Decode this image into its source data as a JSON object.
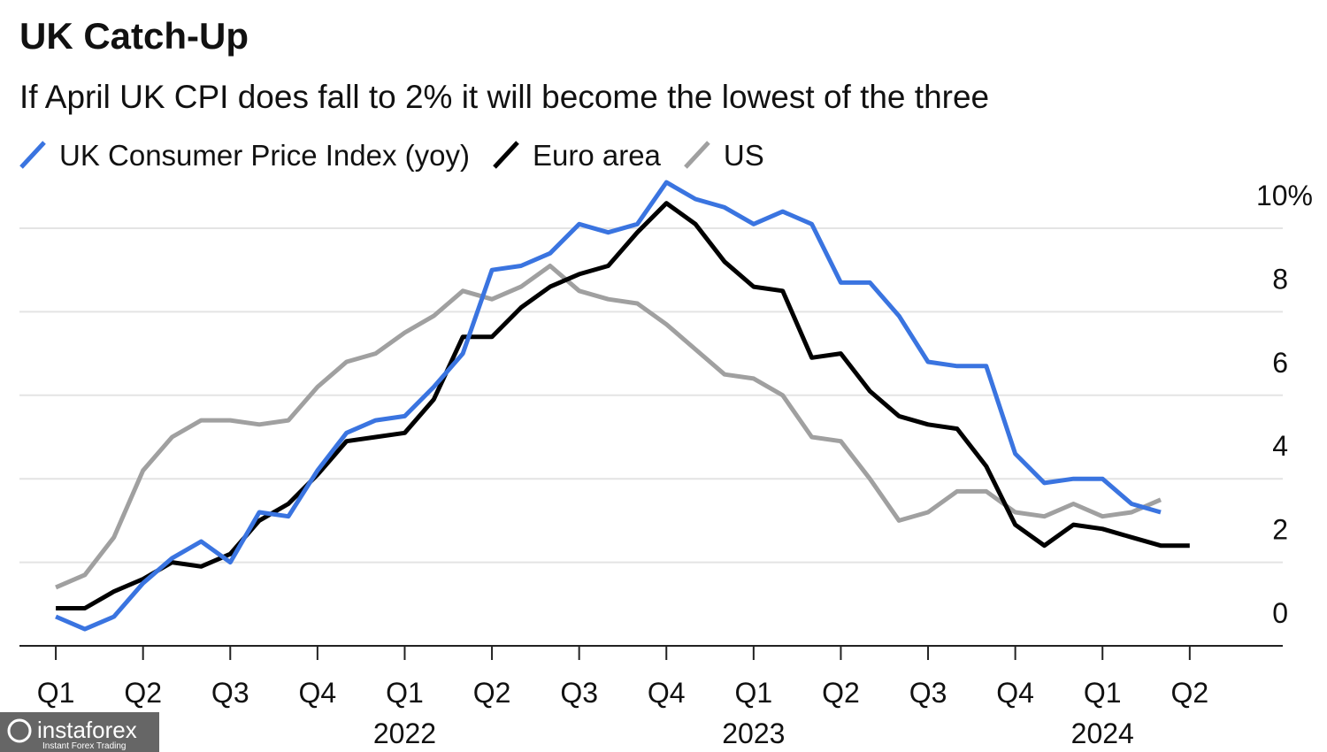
{
  "chart_data": {
    "type": "line",
    "title": "UK Catch-Up",
    "subtitle": "If April UK CPI does fall to 2% it will become the lowest of the three",
    "x": [
      0,
      1,
      2,
      3,
      4,
      5,
      6,
      7,
      8,
      9,
      10,
      11,
      12,
      13,
      14,
      15,
      16,
      17,
      18,
      19,
      20,
      21,
      22,
      23,
      24,
      25,
      26,
      27,
      28,
      29,
      30,
      31,
      32,
      33,
      34,
      35,
      36,
      37,
      38,
      39
    ],
    "series": [
      {
        "name": "UK Consumer Price Index (yoy)",
        "color": "#3a74e0",
        "values": [
          0.7,
          0.4,
          0.7,
          1.5,
          2.1,
          2.5,
          2.0,
          3.2,
          3.1,
          4.2,
          5.1,
          5.4,
          5.5,
          6.2,
          7.0,
          9.0,
          9.1,
          9.4,
          10.1,
          9.9,
          10.1,
          11.1,
          10.7,
          10.5,
          10.1,
          10.4,
          10.1,
          8.7,
          8.7,
          7.9,
          6.8,
          6.7,
          6.7,
          4.6,
          3.9,
          4.0,
          4.0,
          3.4,
          3.2,
          null
        ]
      },
      {
        "name": "Euro area",
        "color": "#000000",
        "values": [
          0.9,
          0.9,
          1.3,
          1.6,
          2.0,
          1.9,
          2.2,
          3.0,
          3.4,
          4.1,
          4.9,
          5.0,
          5.1,
          5.9,
          7.4,
          7.4,
          8.1,
          8.6,
          8.9,
          9.1,
          9.9,
          10.6,
          10.1,
          9.2,
          8.6,
          8.5,
          6.9,
          7.0,
          6.1,
          5.5,
          5.3,
          5.2,
          4.3,
          2.9,
          2.4,
          2.9,
          2.8,
          2.6,
          2.4,
          2.4
        ]
      },
      {
        "name": "US",
        "color": "#a0a0a0",
        "values": [
          1.4,
          1.7,
          2.6,
          4.2,
          5.0,
          5.4,
          5.4,
          5.3,
          5.4,
          6.2,
          6.8,
          7.0,
          7.5,
          7.9,
          8.5,
          8.3,
          8.6,
          9.1,
          8.5,
          8.3,
          8.2,
          7.7,
          7.1,
          6.5,
          6.4,
          6.0,
          5.0,
          4.9,
          4.0,
          3.0,
          3.2,
          3.7,
          3.7,
          3.2,
          3.1,
          3.4,
          3.1,
          3.2,
          3.5,
          null
        ]
      }
    ],
    "xlim": [
      -1.25,
      42.2
    ],
    "xticks": [
      {
        "value": 0,
        "label": "Q1"
      },
      {
        "value": 3,
        "label": "Q2"
      },
      {
        "value": 6,
        "label": "Q3"
      },
      {
        "value": 9,
        "label": "Q4"
      },
      {
        "value": 12,
        "label": "Q1"
      },
      {
        "value": 15,
        "label": "Q2"
      },
      {
        "value": 18,
        "label": "Q3"
      },
      {
        "value": 21,
        "label": "Q4"
      },
      {
        "value": 24,
        "label": "Q1"
      },
      {
        "value": 27,
        "label": "Q2"
      },
      {
        "value": 30,
        "label": "Q3"
      },
      {
        "value": 33,
        "label": "Q4"
      },
      {
        "value": 36,
        "label": "Q1"
      },
      {
        "value": 39,
        "label": "Q2"
      }
    ],
    "year_labels": [
      {
        "value": 12,
        "label": "2022"
      },
      {
        "value": 24,
        "label": "2023"
      },
      {
        "value": 36,
        "label": "2024"
      }
    ],
    "ylim": [
      0,
      11
    ],
    "yticks": [
      0,
      2,
      4,
      6,
      8,
      {
        "value": 10,
        "label": "10%"
      }
    ],
    "grid": true,
    "legend": "top-left"
  },
  "watermark": {
    "name": "instaforex",
    "tagline": "Instant Forex Trading"
  }
}
